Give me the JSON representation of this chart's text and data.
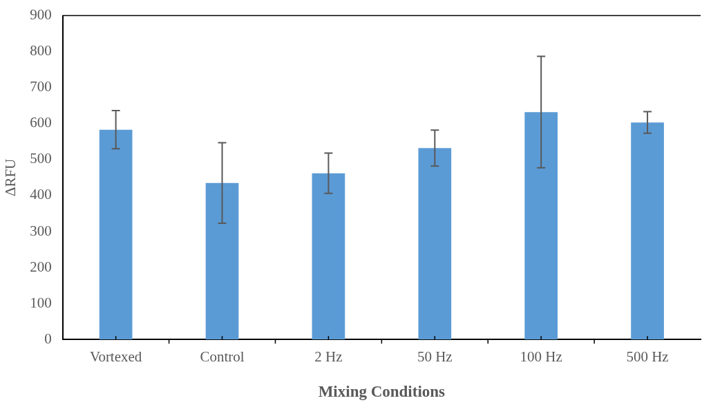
{
  "chart_data": {
    "type": "bar",
    "xlabel": "Mixing Conditions",
    "ylabel": "ΔRFU",
    "categories": [
      "Vortexed",
      "Control",
      "2 Hz",
      "50 Hz",
      "100 Hz",
      "500 Hz"
    ],
    "values": [
      583,
      435,
      462,
      532,
      632,
      603
    ],
    "errors": [
      53,
      112,
      56,
      50,
      155,
      30
    ],
    "color": "#5b9bd5",
    "ylim": [
      0,
      900
    ],
    "yticks": [
      0,
      100,
      200,
      300,
      400,
      500,
      600,
      700,
      800,
      900
    ],
    "grid": false,
    "legend": false
  }
}
